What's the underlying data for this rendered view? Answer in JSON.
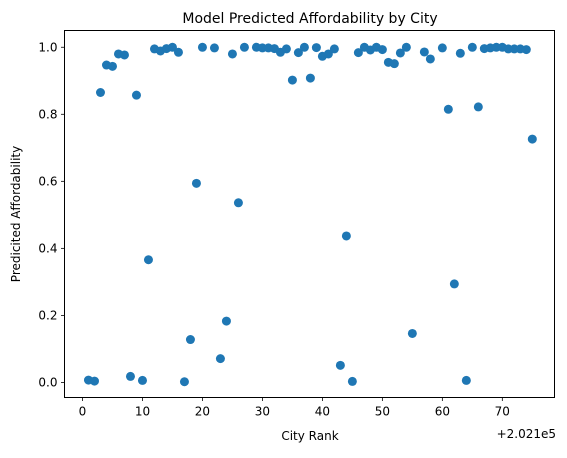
{
  "chart_data": {
    "type": "scatter",
    "title": "Model Predicted Affordability by City",
    "xlabel": "City Rank",
    "ylabel": "Predicited Affordability",
    "x_offset_label": "+2.021e5",
    "xlim": [
      -3.0,
      78.7
    ],
    "ylim": [
      -0.045,
      1.05
    ],
    "x_ticks": [
      0,
      10,
      20,
      30,
      40,
      50,
      60,
      70
    ],
    "y_ticks": [
      0.0,
      0.2,
      0.4,
      0.6,
      0.8,
      1.0
    ],
    "x_tick_labels": [
      "0",
      "10",
      "20",
      "30",
      "40",
      "50",
      "60",
      "70"
    ],
    "y_tick_labels": [
      "0.0",
      "0.2",
      "0.4",
      "0.6",
      "0.8",
      "1.0"
    ],
    "grid": false,
    "marker_color": "#1f77b4",
    "points": [
      {
        "x": 1,
        "y": 0.007
      },
      {
        "x": 2,
        "y": 0.004
      },
      {
        "x": 3,
        "y": 0.865
      },
      {
        "x": 4,
        "y": 0.947
      },
      {
        "x": 5,
        "y": 0.943
      },
      {
        "x": 6,
        "y": 0.98
      },
      {
        "x": 7,
        "y": 0.977
      },
      {
        "x": 8,
        "y": 0.018
      },
      {
        "x": 9,
        "y": 0.857
      },
      {
        "x": 10,
        "y": 0.006
      },
      {
        "x": 11,
        "y": 0.366
      },
      {
        "x": 12,
        "y": 0.995
      },
      {
        "x": 13,
        "y": 0.989
      },
      {
        "x": 14,
        "y": 0.996
      },
      {
        "x": 15,
        "y": 1.0
      },
      {
        "x": 16,
        "y": 0.985
      },
      {
        "x": 17,
        "y": 0.002
      },
      {
        "x": 18,
        "y": 0.128
      },
      {
        "x": 19,
        "y": 0.594
      },
      {
        "x": 20,
        "y": 1.0
      },
      {
        "x": 22,
        "y": 0.998
      },
      {
        "x": 23,
        "y": 0.071
      },
      {
        "x": 24,
        "y": 0.183
      },
      {
        "x": 25,
        "y": 0.98
      },
      {
        "x": 26,
        "y": 0.536
      },
      {
        "x": 27,
        "y": 1.0
      },
      {
        "x": 29,
        "y": 1.0
      },
      {
        "x": 30,
        "y": 0.998
      },
      {
        "x": 31,
        "y": 0.998
      },
      {
        "x": 32,
        "y": 0.996
      },
      {
        "x": 33,
        "y": 0.985
      },
      {
        "x": 34,
        "y": 0.995
      },
      {
        "x": 35,
        "y": 0.902
      },
      {
        "x": 36,
        "y": 0.984
      },
      {
        "x": 37,
        "y": 1.0
      },
      {
        "x": 38,
        "y": 0.908
      },
      {
        "x": 39,
        "y": 0.999
      },
      {
        "x": 40,
        "y": 0.973
      },
      {
        "x": 41,
        "y": 0.98
      },
      {
        "x": 42,
        "y": 0.995
      },
      {
        "x": 43,
        "y": 0.051
      },
      {
        "x": 44,
        "y": 0.437
      },
      {
        "x": 45,
        "y": 0.003
      },
      {
        "x": 46,
        "y": 0.984
      },
      {
        "x": 47,
        "y": 1.0
      },
      {
        "x": 48,
        "y": 0.992
      },
      {
        "x": 49,
        "y": 1.0
      },
      {
        "x": 50,
        "y": 0.993
      },
      {
        "x": 51,
        "y": 0.955
      },
      {
        "x": 52,
        "y": 0.951
      },
      {
        "x": 53,
        "y": 0.983
      },
      {
        "x": 54,
        "y": 1.0
      },
      {
        "x": 55,
        "y": 0.146
      },
      {
        "x": 57,
        "y": 0.986
      },
      {
        "x": 58,
        "y": 0.965
      },
      {
        "x": 60,
        "y": 0.998
      },
      {
        "x": 61,
        "y": 0.815
      },
      {
        "x": 62,
        "y": 0.294
      },
      {
        "x": 63,
        "y": 0.982
      },
      {
        "x": 64,
        "y": 0.006
      },
      {
        "x": 65,
        "y": 1.0
      },
      {
        "x": 66,
        "y": 0.822
      },
      {
        "x": 67,
        "y": 0.996
      },
      {
        "x": 68,
        "y": 0.998
      },
      {
        "x": 69,
        "y": 1.0
      },
      {
        "x": 70,
        "y": 1.0
      },
      {
        "x": 71,
        "y": 0.995
      },
      {
        "x": 72,
        "y": 0.995
      },
      {
        "x": 73,
        "y": 0.995
      },
      {
        "x": 74,
        "y": 0.993
      },
      {
        "x": 75,
        "y": 0.726
      }
    ]
  }
}
